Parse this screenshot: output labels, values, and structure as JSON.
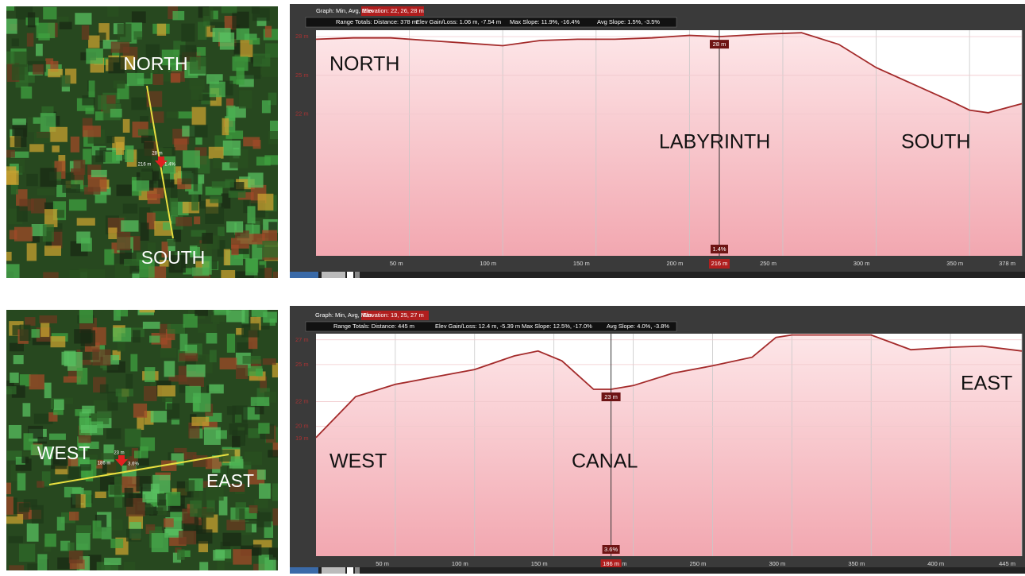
{
  "chart_data": [
    {
      "type": "line",
      "header": {
        "graph": "Graph: Min, Avg, Max",
        "elevation": "Elevation: 22, 26, 28 m",
        "distance": "Range Totals: Distance: 378 m",
        "gain_loss": "Elev Gain/Loss: 1.06 m, -7.54 m",
        "max_slope": "Max Slope: 11.9%, -16.4%",
        "avg_slope": "Avg Slope: 1.5%, -3.5%"
      },
      "annotations": [
        "NORTH",
        "LABYRINTH",
        "SOUTH"
      ],
      "x": [
        0,
        20,
        40,
        60,
        80,
        100,
        120,
        140,
        160,
        180,
        200,
        216,
        240,
        260,
        280,
        300,
        320,
        340,
        350,
        360,
        378
      ],
      "series": [
        {
          "name": "Elevation",
          "color": "#a32a2a",
          "values": [
            27.8,
            27.9,
            27.9,
            27.7,
            27.5,
            27.3,
            27.7,
            27.8,
            27.8,
            27.9,
            28.1,
            28.0,
            28.2,
            28.3,
            27.4,
            25.6,
            24.3,
            23.0,
            22.3,
            22.1,
            22.8
          ]
        }
      ],
      "xlim": [
        0,
        378
      ],
      "xticks": [
        {
          "value": 50,
          "label": "50 m"
        },
        {
          "value": 100,
          "label": "100 m"
        },
        {
          "value": 150,
          "label": "150 m"
        },
        {
          "value": 200,
          "label": "200 m"
        },
        {
          "value": 250,
          "label": "250 m"
        },
        {
          "value": 300,
          "label": "300 m"
        },
        {
          "value": 350,
          "label": "350 m"
        },
        {
          "value": 378,
          "label": "378 m"
        }
      ],
      "ylim": [
        11,
        28.5
      ],
      "yticks": [
        {
          "value": 22,
          "label": "22 m"
        },
        {
          "value": 25,
          "label": "25 m"
        },
        {
          "value": 28,
          "label": "28 m"
        }
      ],
      "cursor": {
        "x": 216,
        "x_label": "216 m",
        "y": 28,
        "y_label": "28 m",
        "slope_label": "1.4%"
      }
    },
    {
      "type": "line",
      "header": {
        "graph": "Graph: Min, Avg, Max",
        "elevation": "Elevation: 19, 25, 27 m",
        "distance": "Range Totals: Distance: 445 m",
        "gain_loss": "Elev Gain/Loss: 12.4 m, -5.39 m",
        "max_slope": "Max Slope: 12.5%, -17.0%",
        "avg_slope": "Avg Slope: 4.0%, -3.8%"
      },
      "annotations": [
        "WEST",
        "CANAL",
        "EAST"
      ],
      "x": [
        0,
        25,
        50,
        75,
        100,
        125,
        140,
        155,
        175,
        186,
        200,
        225,
        250,
        275,
        290,
        300,
        350,
        375,
        400,
        420,
        445
      ],
      "series": [
        {
          "name": "Elevation",
          "color": "#a32a2a",
          "values": [
            19.1,
            22.4,
            23.4,
            24.0,
            24.6,
            25.7,
            26.1,
            25.3,
            23.0,
            23.0,
            23.3,
            24.3,
            24.9,
            25.6,
            27.2,
            27.4,
            27.4,
            26.2,
            26.4,
            26.5,
            26.1
          ]
        }
      ],
      "xlim": [
        0,
        445
      ],
      "xticks": [
        {
          "value": 50,
          "label": "50 m"
        },
        {
          "value": 100,
          "label": "100 m"
        },
        {
          "value": 150,
          "label": "150 m"
        },
        {
          "value": 200,
          "label": "200 m"
        },
        {
          "value": 250,
          "label": "250 m"
        },
        {
          "value": 300,
          "label": "300 m"
        },
        {
          "value": 350,
          "label": "350 m"
        },
        {
          "value": 400,
          "label": "400 m"
        },
        {
          "value": 445,
          "label": "445 m"
        }
      ],
      "ylim": [
        9.5,
        27.5
      ],
      "yticks": [
        {
          "value": 19,
          "label": "19 m"
        },
        {
          "value": 20,
          "label": "20 m"
        },
        {
          "value": 22,
          "label": "22 m"
        },
        {
          "value": 25,
          "label": "25 m"
        },
        {
          "value": 27,
          "label": "27 m"
        }
      ],
      "cursor": {
        "x": 186,
        "x_label": "186 m",
        "y": 23,
        "y_label": "23 m",
        "slope_label": "3.6%"
      }
    }
  ],
  "maps": [
    {
      "labels": [
        "NORTH",
        "SOUTH"
      ],
      "tip": [
        "28 m",
        "216 m",
        "1.4%"
      ]
    },
    {
      "labels": [
        "WEST",
        "EAST"
      ],
      "tip": [
        "23 m",
        "186 m",
        "3.6%"
      ]
    }
  ]
}
